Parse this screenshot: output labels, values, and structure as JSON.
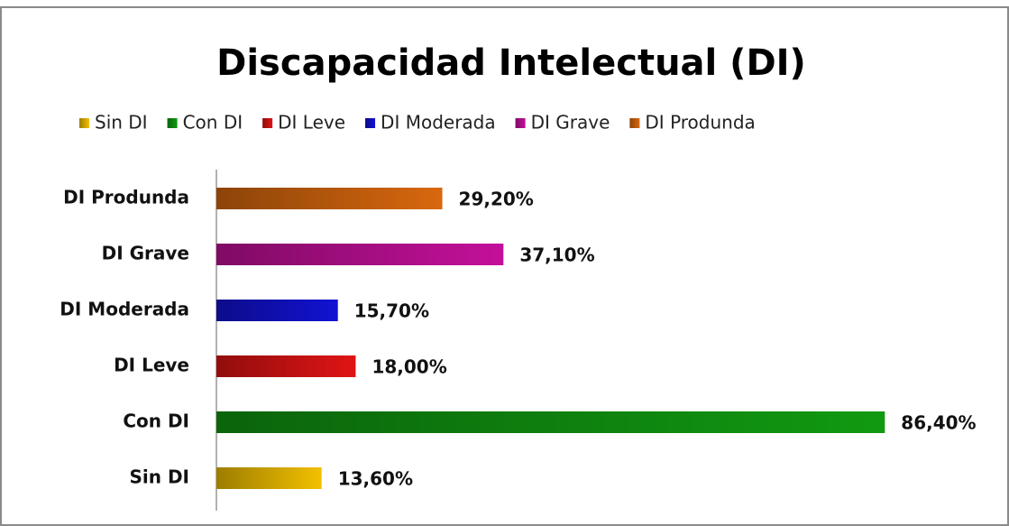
{
  "chart_data": {
    "type": "hbar",
    "title": "Discapacidad Intelectual (DI)",
    "categories": [
      "Sin DI",
      "Con DI",
      "DI Leve",
      "DI Moderada",
      "DI Grave",
      "DI Produnda"
    ],
    "values": [
      13.6,
      86.4,
      18.0,
      15.7,
      37.1,
      29.2
    ],
    "value_labels": [
      "13,60%",
      "86,40%",
      "18,00%",
      "15,70%",
      "37,10%",
      "29,20%"
    ],
    "colors": [
      "#f2c000",
      "#119a11",
      "#e01414",
      "#1212d4",
      "#c4109a",
      "#d8680e"
    ],
    "legend": true
  }
}
